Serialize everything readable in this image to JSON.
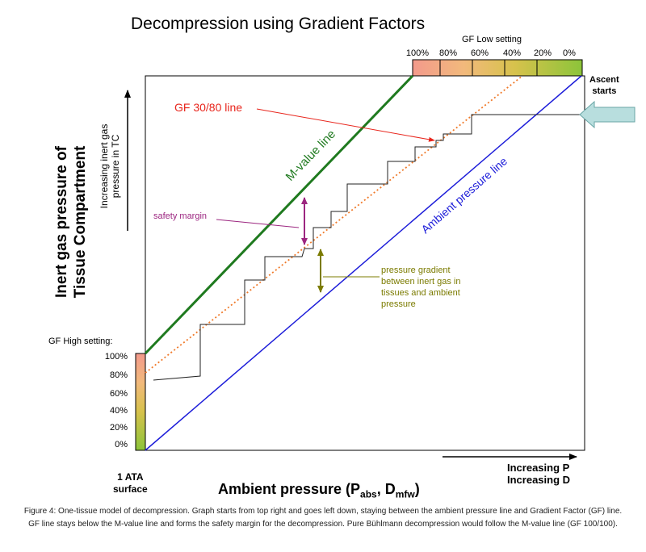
{
  "title": "Decompression using Gradient Factors",
  "y_axis": {
    "label_line1": "Inert gas pressure of",
    "label_line2": "Tissue Compartment",
    "increasing_line1": "Increasing inert gas",
    "increasing_line2": "pressure in TC"
  },
  "x_axis": {
    "label_main": "Ambient pressure (P",
    "label_sub1": "abs",
    "label_mid": ", D",
    "label_sub2": "mfw",
    "label_end": ")",
    "origin_line1": "1 ATA",
    "origin_line2": "surface",
    "increasing_line1": "Increasing P",
    "increasing_line2": "Increasing D"
  },
  "gf_low": {
    "title": "GF Low setting",
    "ticks": [
      "100%",
      "80%",
      "60%",
      "40%",
      "20%",
      "0%"
    ]
  },
  "gf_high": {
    "title": "GF High setting:",
    "ticks": [
      "100%",
      "80%",
      "60%",
      "40%",
      "20%",
      "0%"
    ]
  },
  "lines": {
    "m_value": "M-value line",
    "ambient": "Ambient pressure line",
    "gf": "GF 30/80 line"
  },
  "annotations": {
    "safety_margin": "safety margin",
    "gradient_line1": "pressure gradient",
    "gradient_line2": "between inert gas in",
    "gradient_line3": "tissues and ambient",
    "gradient_line4": "pressure",
    "ascent_line1": "Ascent",
    "ascent_line2": "starts"
  },
  "caption": "Figure 4: One-tissue model of decompression. Graph starts from top right and goes left down, staying between the ambient pressure line and Gradient Factor (GF) line.  GF line stays below the M-value line and forms the safety margin for the decompression. Pure Bühlmann decompression would follow the M-value line (GF 100/100).",
  "colors": {
    "m_value": "#1f7a1f",
    "ambient": "#1c1cd9",
    "gf_line": "#f07a2a",
    "safety": "#9c2680",
    "gradient": "#7b7b00",
    "gf_line_label": "#e8251c",
    "ascent_arrow": "#b8dede"
  }
}
